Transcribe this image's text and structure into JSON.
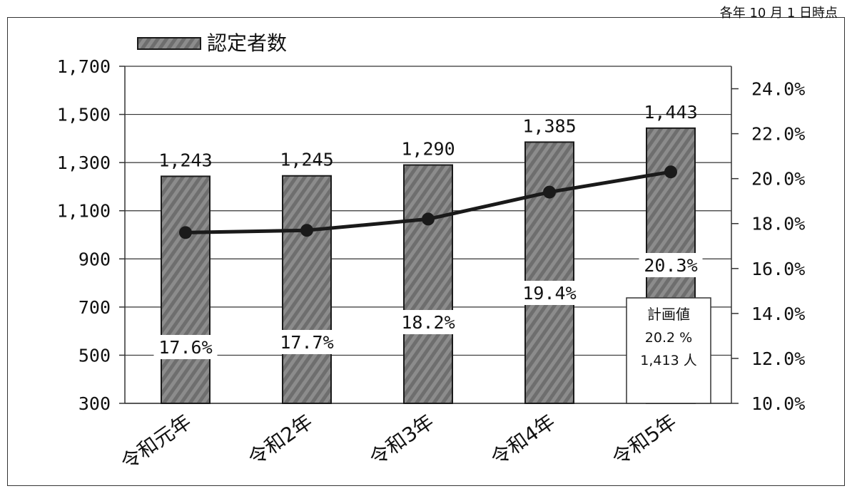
{
  "note": "各年 10 月 1 日時点",
  "legend": {
    "label": "認定者数"
  },
  "plan_box": {
    "title": "計画値",
    "rate": "20.2 %",
    "count": "1,413 人"
  },
  "colors": {
    "bar": "#8c8c8c",
    "bar_edge": "#1a1a1a",
    "line": "#1a1a1a",
    "grid": "#333333"
  },
  "chart_data": {
    "type": "bar",
    "categories": [
      "令和元年",
      "令和2年",
      "令和3年",
      "令和4年",
      "令和5年"
    ],
    "series": [
      {
        "name": "認定者数",
        "type": "bar",
        "axis": "left",
        "values": [
          1243,
          1245,
          1290,
          1385,
          1443
        ],
        "labels": [
          "1,243",
          "1,245",
          "1,290",
          "1,385",
          "1,443"
        ]
      },
      {
        "type": "line",
        "axis": "right",
        "values": [
          17.6,
          17.7,
          18.2,
          19.4,
          20.3
        ],
        "labels": [
          "17.6%",
          "17.7%",
          "18.2%",
          "19.4%",
          "20.3%"
        ]
      }
    ],
    "y_left": {
      "ylim": [
        300,
        1700
      ],
      "ticks": [
        "1,700",
        "1,500",
        "1,300",
        "1,100",
        "900",
        "700",
        "500",
        "300"
      ],
      "tick_values": [
        1700,
        1500,
        1300,
        1100,
        900,
        700,
        500,
        300
      ]
    },
    "y_right": {
      "ylim": [
        10,
        25
      ],
      "ticks": [
        "24.0%",
        "22.0%",
        "20.0%",
        "18.0%",
        "16.0%",
        "14.0%",
        "12.0%",
        "10.0%"
      ],
      "tick_values": [
        24,
        22,
        20,
        18,
        16,
        14,
        12,
        10
      ]
    },
    "grid": true,
    "legend_position": "top-left"
  }
}
